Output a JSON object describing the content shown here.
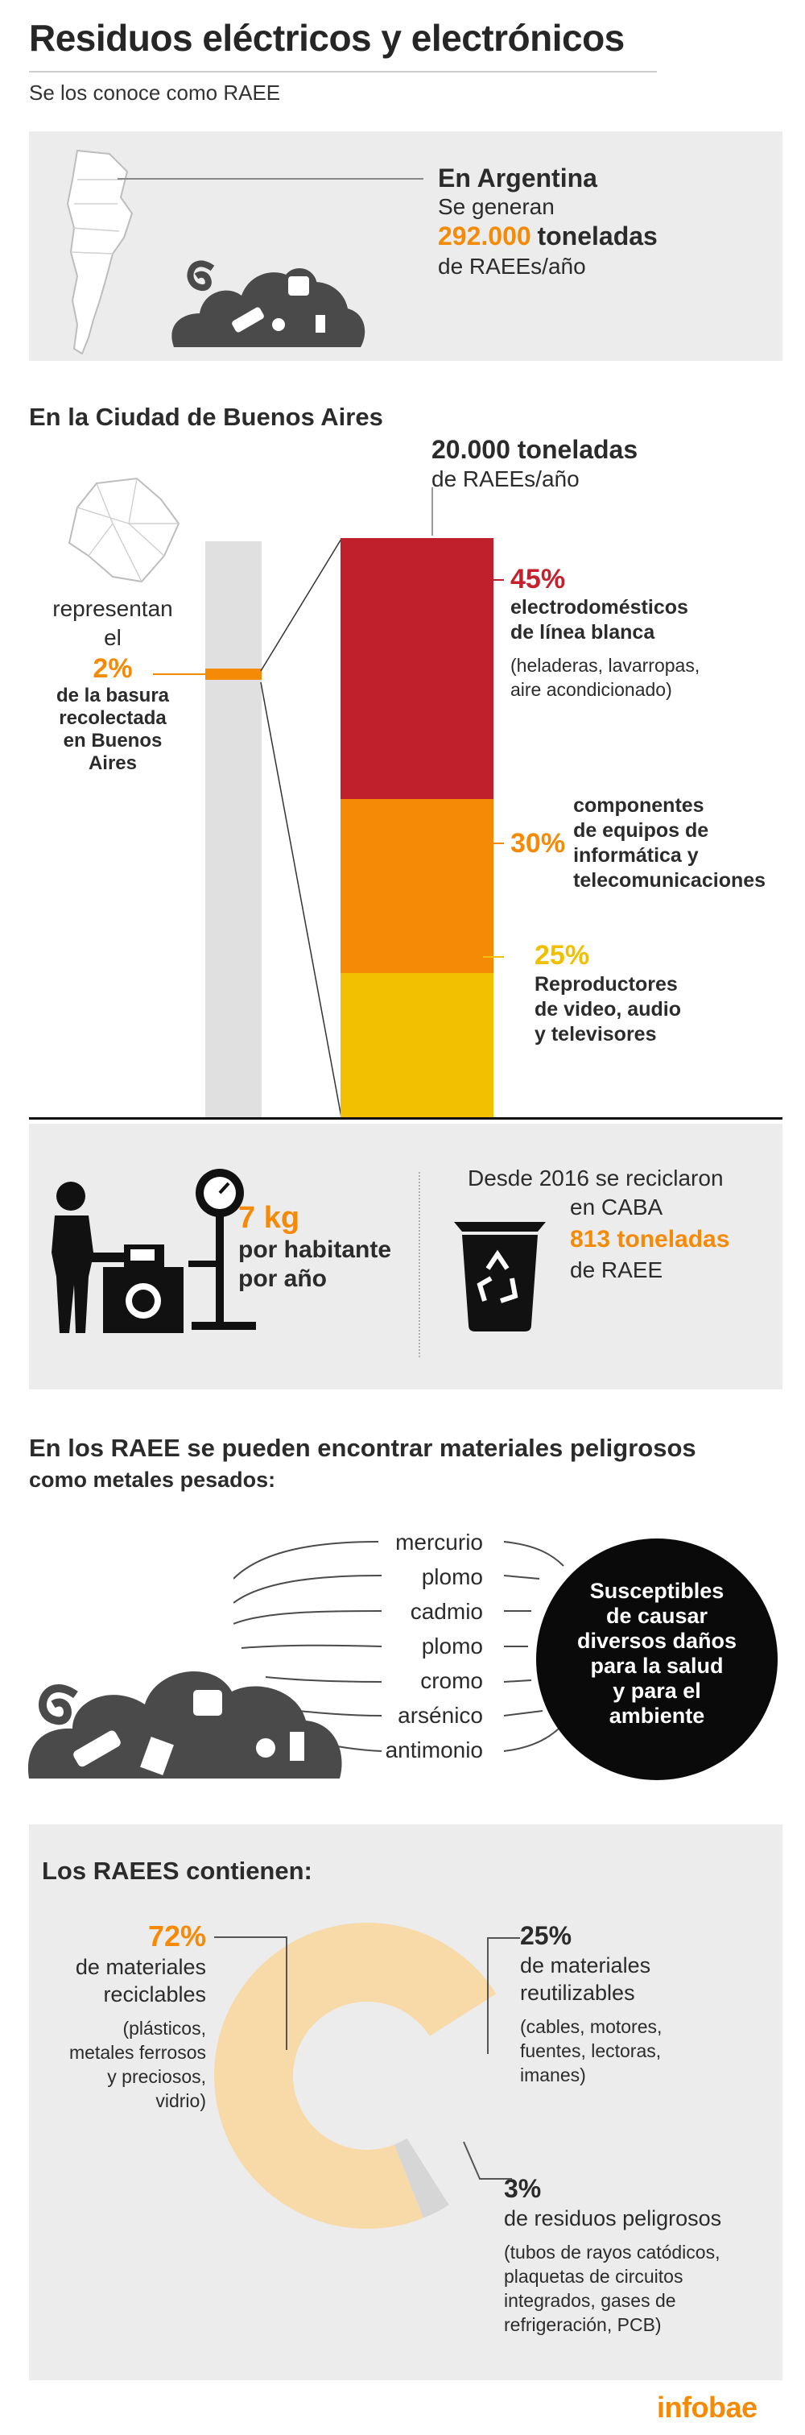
{
  "header": {
    "title": "Residuos eléctricos y electrónicos",
    "subtitle": "Se los conoce como RAEE"
  },
  "argentina": {
    "heading": "En Argentina",
    "line1": "Se generan",
    "amount": "292.000",
    "unit": "toneladas",
    "line3": "de RAEEs/año"
  },
  "caba": {
    "section_title": "En la Ciudad de Buenos Aires",
    "total_amount": "20.000 toneladas",
    "total_unit": "de RAEEs/año",
    "represent_1": "representan",
    "represent_2": "el",
    "represent_pct": "2%",
    "represent_rest": [
      "de la basura",
      "recolectada",
      "en Buenos",
      "Aires"
    ],
    "represent_fraction": 0.02
  },
  "breakdown": [
    {
      "pct": "45%",
      "fraction": 0.45,
      "color": "#c01f2c",
      "label_lines": [
        "electrodomésticos",
        "de línea blanca"
      ],
      "note_lines": [
        "(heladeras, lavarropas,",
        "aire acondicionado)"
      ]
    },
    {
      "pct": "30%",
      "fraction": 0.3,
      "color": "#f58a07",
      "label_lines": [
        "componentes",
        "de equipos de",
        "informática y",
        "telecomunicaciones"
      ],
      "note_lines": []
    },
    {
      "pct": "25%",
      "fraction": 0.25,
      "color": "#f2c000",
      "label_lines": [
        "Reproductores",
        "de video, audio",
        "y televisores"
      ],
      "note_lines": []
    }
  ],
  "per_capita": {
    "amount": "7 kg",
    "line2": "por habitante",
    "line3": "por año"
  },
  "recycled": {
    "line1": "Desde 2016 se reciclaron",
    "line2": "en CABA",
    "amount": "813 toneladas",
    "line4": "de RAEE"
  },
  "hazard": {
    "title_line1": "En los RAEE se pueden encontrar materiales peligrosos",
    "title_line2": "como metales pesados:",
    "metals": [
      "mercurio",
      "plomo",
      "cadmio",
      "plomo",
      "cromo",
      "arsénico",
      "antimonio"
    ],
    "circle_lines": [
      "Susceptibles",
      "de causar",
      "diversos daños",
      "para la salud",
      "y para el",
      "ambiente"
    ]
  },
  "contents": {
    "title": "Los RAEES contienen:",
    "items": [
      {
        "pct": "72%",
        "fraction": 0.72,
        "color": "#f8d9a8",
        "label_lines": [
          "de materiales",
          "reciclables"
        ],
        "note_lines": [
          "(plásticos,",
          "metales ferrosos",
          "y preciosos,",
          "vidrio)"
        ]
      },
      {
        "pct": "25%",
        "fraction": 0.25,
        "color": "#ececec",
        "label_lines": [
          "de materiales",
          "reutilizables"
        ],
        "note_lines": [
          "(cables, motores,",
          "fuentes, lectoras,",
          "imanes)"
        ]
      },
      {
        "pct": "3%",
        "fraction": 0.03,
        "color": "#d6d6d6",
        "label_lines": [
          "de residuos peligrosos"
        ],
        "note_lines": [
          "(tubos de rayos catódicos,",
          "plaquetas de circuitos",
          "integrados, gases de",
          "refrigeración, PCB)"
        ]
      }
    ]
  },
  "footer": {
    "brand": "infobae"
  },
  "colors": {
    "orange": "#f58a07",
    "red": "#c01f2c",
    "yellow": "#f2c000",
    "panel": "#ececec",
    "icon": "#4a4a4a"
  }
}
